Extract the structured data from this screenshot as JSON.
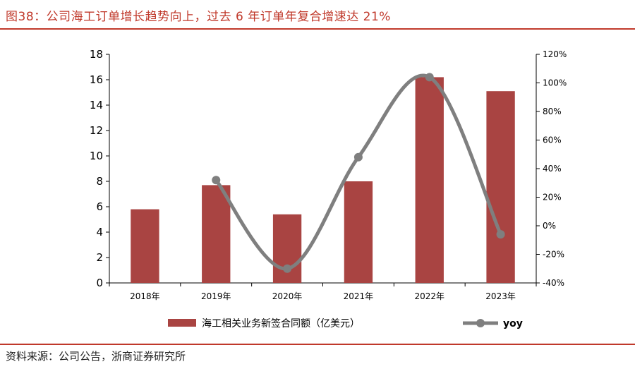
{
  "title": "图38：公司海工订单增长趋势向上，过去 6 年订单年复合增速达 21%",
  "source": "资料来源：公司公告，浙商证券研究所",
  "colors": {
    "accent": "#c0392b",
    "bar": "#a94442",
    "line": "#7f7f7f"
  },
  "chart_data": {
    "type": "bar",
    "categories": [
      "2018年",
      "2019年",
      "2020年",
      "2021年",
      "2022年",
      "2023年"
    ],
    "series": [
      {
        "name": "海工相关业务新签合同额（亿美元）",
        "type": "bar",
        "axis": "left",
        "values": [
          5.8,
          7.7,
          5.4,
          8.0,
          16.2,
          15.1
        ]
      },
      {
        "name": "yoy",
        "type": "line",
        "axis": "right",
        "values": [
          null,
          32,
          -30,
          48,
          104,
          -6
        ]
      }
    ],
    "left_axis": {
      "min": 0,
      "max": 18,
      "step": 2,
      "ticks": [
        "0",
        "2",
        "4",
        "6",
        "8",
        "10",
        "12",
        "14",
        "16",
        "18"
      ]
    },
    "right_axis": {
      "min": -40,
      "max": 120,
      "step": 20,
      "ticks": [
        "-40%",
        "-20%",
        "0%",
        "20%",
        "40%",
        "60%",
        "80%",
        "100%",
        "120%"
      ]
    },
    "grid": false,
    "legend_position": "bottom"
  }
}
